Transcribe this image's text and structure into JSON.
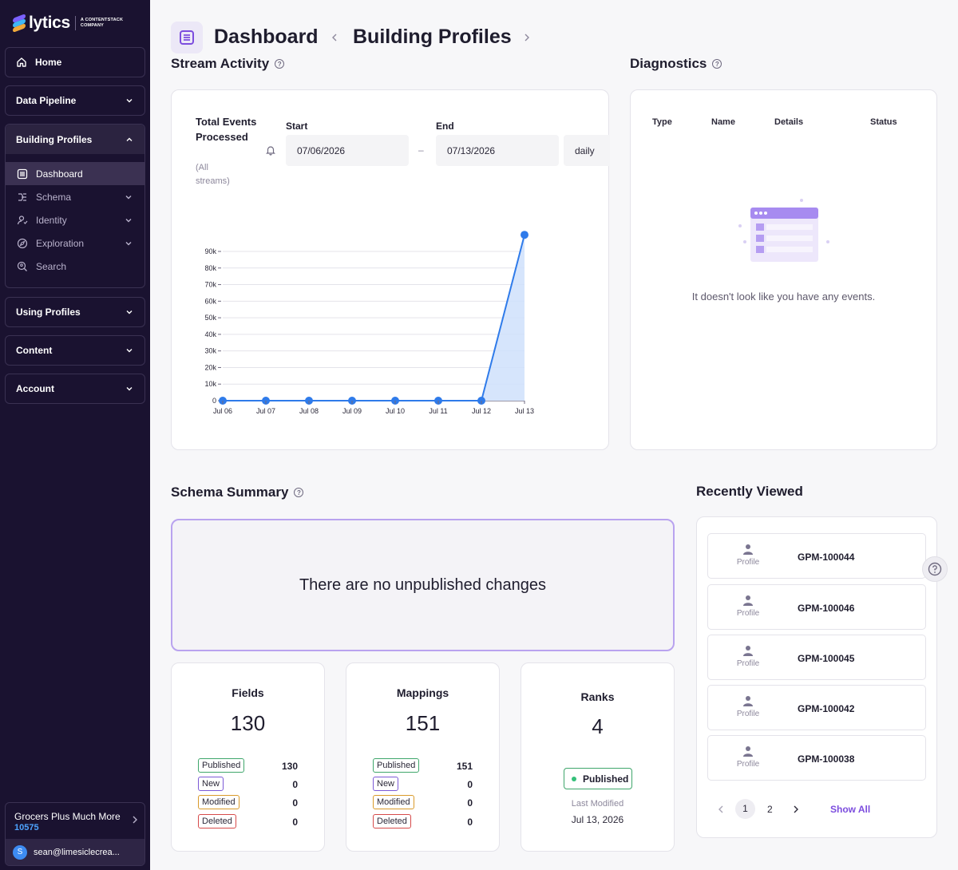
{
  "brand": {
    "name": "lytics",
    "tagline_1": "A CONTENTSTACK",
    "tagline_2": "COMPANY"
  },
  "sidebar": {
    "home": "Home",
    "data_pipeline": "Data Pipeline",
    "building_profiles": "Building Profiles",
    "sub_items": [
      "Dashboard",
      "Schema",
      "Identity",
      "Exploration",
      "Search"
    ],
    "using_profiles": "Using Profiles",
    "content": "Content",
    "account": "Account",
    "org_name": "Grocers Plus Much More",
    "org_id": "10575",
    "user_initial": "S",
    "user_email": "sean@limesiclecrea..."
  },
  "header": {
    "crumb_1": "Dashboard",
    "crumb_2": "Building Profiles"
  },
  "stream": {
    "title": "Stream Activity",
    "metric_title": "Total Events Processed",
    "metric_sub": "(All streams)",
    "start_label": "Start",
    "start_value": "07/06/2026",
    "end_label": "End",
    "end_value": "07/13/2026",
    "interval": "daily"
  },
  "chart_data": {
    "type": "area",
    "x": [
      "Jul 06",
      "Jul 07",
      "Jul 08",
      "Jul 09",
      "Jul 10",
      "Jul 11",
      "Jul 12",
      "Jul 13"
    ],
    "values": [
      0,
      0,
      0,
      0,
      0,
      0,
      0,
      100000
    ],
    "y_ticks": [
      "0",
      "10k",
      "20k",
      "30k",
      "40k",
      "50k",
      "60k",
      "70k",
      "80k",
      "90k"
    ],
    "ylim": [
      0,
      90000
    ],
    "grid": true,
    "color": "#2f7bea",
    "fill": "#cfe0fb"
  },
  "diagnostics": {
    "title": "Diagnostics",
    "columns": [
      "Type",
      "Name",
      "Details",
      "Status"
    ],
    "empty_message": "It doesn't look like you have any events."
  },
  "schema": {
    "title": "Schema Summary",
    "unpublished_message": "There are no unpublished changes",
    "fields": {
      "title": "Fields",
      "total": "130",
      "rows": [
        {
          "label": "Published",
          "value": "130"
        },
        {
          "label": "New",
          "value": "0"
        },
        {
          "label": "Modified",
          "value": "0"
        },
        {
          "label": "Deleted",
          "value": "0"
        }
      ]
    },
    "mappings": {
      "title": "Mappings",
      "total": "151",
      "rows": [
        {
          "label": "Published",
          "value": "151"
        },
        {
          "label": "New",
          "value": "0"
        },
        {
          "label": "Modified",
          "value": "0"
        },
        {
          "label": "Deleted",
          "value": "0"
        }
      ]
    },
    "ranks": {
      "title": "Ranks",
      "total": "4",
      "status": "Published",
      "last_modified_label": "Last Modified",
      "last_modified": "Jul 13, 2026"
    }
  },
  "recent": {
    "title": "Recently Viewed",
    "items": [
      {
        "type": "Profile",
        "id": "GPM-100044"
      },
      {
        "type": "Profile",
        "id": "GPM-100046"
      },
      {
        "type": "Profile",
        "id": "GPM-100045"
      },
      {
        "type": "Profile",
        "id": "GPM-100042"
      },
      {
        "type": "Profile",
        "id": "GPM-100038"
      }
    ],
    "page_1": "1",
    "page_2": "2",
    "show_all": "Show All"
  }
}
